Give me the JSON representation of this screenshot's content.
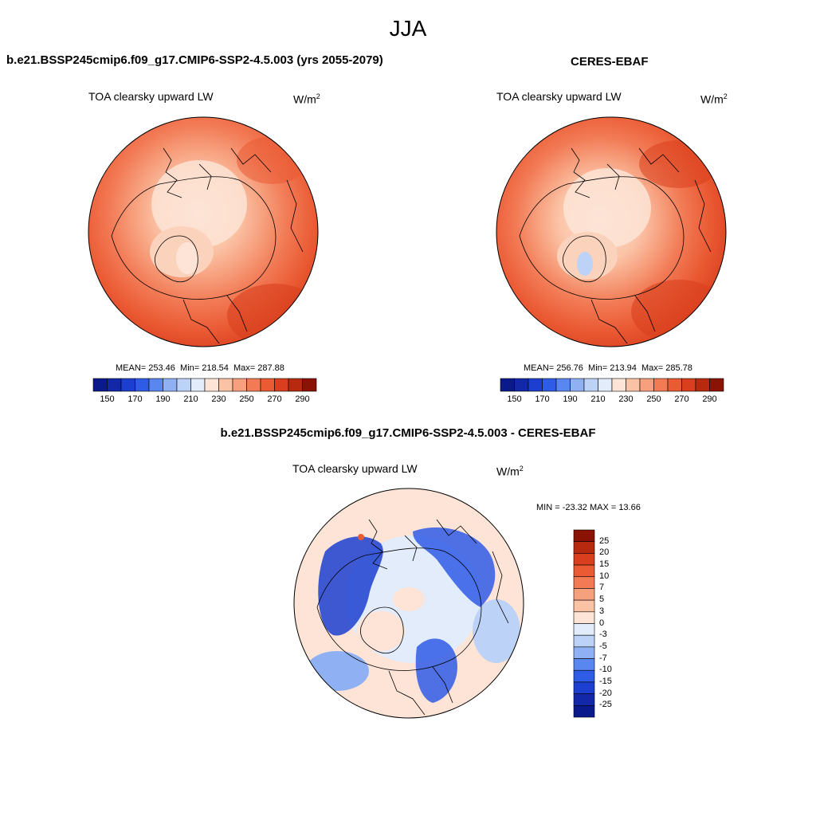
{
  "season": "JJA",
  "panels": {
    "model": {
      "title": "b.e21.BSSP245cmip6.f09_g17.CMIP6-SSP2-4.5.003 (yrs 2055-2079)",
      "variable": "TOA clearsky upward LW",
      "units_base": "W/m",
      "units_exp": "2",
      "stats_mean": "MEAN= 253.46",
      "stats_min": "Min= 218.54",
      "stats_max": "Max= 287.88"
    },
    "obs": {
      "title": "CERES-EBAF",
      "variable": "TOA clearsky upward LW",
      "units_base": "W/m",
      "units_exp": "2",
      "stats_mean": "MEAN= 256.76",
      "stats_min": "Min= 213.94",
      "stats_max": "Max= 285.78"
    },
    "diff": {
      "title": "b.e21.BSSP245cmip6.f09_g17.CMIP6-SSP2-4.5.003 - CERES-EBAF",
      "variable": "TOA clearsky upward LW",
      "units_base": "W/m",
      "units_exp": "2",
      "stats": "MIN = -23.32 MAX =  13.66"
    }
  },
  "colorbars": {
    "absolute": {
      "labels": [
        "150",
        "170",
        "190",
        "210",
        "230",
        "250",
        "270",
        "290"
      ],
      "colors": [
        "#0a1a8a",
        "#1228a8",
        "#1c3fd0",
        "#2f5ce6",
        "#5a86ef",
        "#8fb1f3",
        "#bcd2f7",
        "#e2ecfb",
        "#fde4d6",
        "#fbc3a6",
        "#f7a07e",
        "#f27b56",
        "#ea5a33",
        "#d93f1e",
        "#b82a10",
        "#8a1305"
      ]
    },
    "difference": {
      "labels": [
        "25",
        "20",
        "15",
        "10",
        "7",
        "5",
        "3",
        "0",
        "-3",
        "-5",
        "-7",
        "-10",
        "-15",
        "-20",
        "-25"
      ],
      "colors": [
        "#8a1305",
        "#b82a10",
        "#d93f1e",
        "#ea5a33",
        "#f27b56",
        "#f7a07e",
        "#fbc3a6",
        "#fde4d6",
        "#e2ecfb",
        "#bcd2f7",
        "#8fb1f3",
        "#5a86ef",
        "#2f5ce6",
        "#1c3fd0",
        "#1228a8",
        "#0a1a8a"
      ]
    }
  }
}
